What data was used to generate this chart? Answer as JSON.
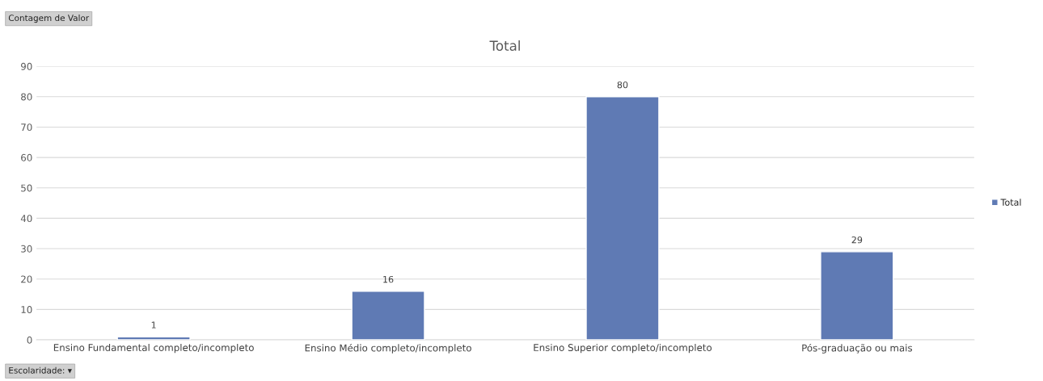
{
  "chart_data": {
    "type": "bar",
    "title": "Total",
    "categories": [
      "Ensino Fundamental completo/incompleto",
      "Ensino Médio completo/incompleto",
      "Ensino Superior completo/incompleto",
      "Pós-graduação ou mais"
    ],
    "series": [
      {
        "name": "Total",
        "color": "#5f7ab4",
        "values": [
          1,
          16,
          80,
          29
        ]
      }
    ],
    "ylim": [
      0,
      90
    ],
    "yticks": [
      0,
      10,
      20,
      30,
      40,
      50,
      60,
      70,
      80,
      90
    ],
    "grid": "y",
    "legend": "right",
    "data_labels": true,
    "annotations": [
      "Contagem de Valor",
      "Escolaridade: ▾"
    ]
  }
}
